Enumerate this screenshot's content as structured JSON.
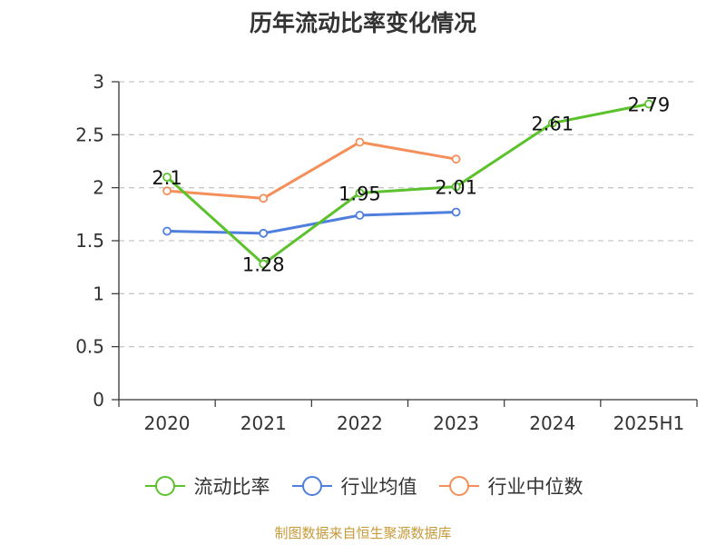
{
  "chart_data": {
    "type": "line",
    "title": "历年流动比率变化情况",
    "categories": [
      "2020",
      "2021",
      "2022",
      "2023",
      "2024",
      "2025H1"
    ],
    "ylim": [
      0,
      3
    ],
    "yticks": [
      "0",
      "0.5",
      "1",
      "1.5",
      "2",
      "2.5",
      "3"
    ],
    "grid": true,
    "legend_position": "bottom",
    "series": [
      {
        "name": "流动比率",
        "color": "#5bc12c",
        "values": [
          2.1,
          1.28,
          1.95,
          2.01,
          2.61,
          2.79
        ],
        "labels": [
          "2.1",
          "1.28",
          "1.95",
          "2.01",
          "2.61",
          "2.79"
        ]
      },
      {
        "name": "行业均值",
        "color": "#4f7fdc",
        "values": [
          1.59,
          1.57,
          1.74,
          1.77,
          null,
          null
        ]
      },
      {
        "name": "行业中位数",
        "color": "#f58f5a",
        "values": [
          1.97,
          1.9,
          2.43,
          2.27,
          null,
          null
        ]
      }
    ]
  },
  "footer": "制图数据来自恒生聚源数据库"
}
